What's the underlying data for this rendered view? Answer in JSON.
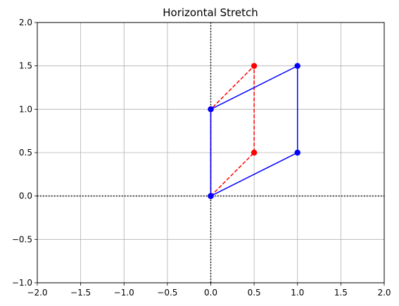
{
  "chart_data": {
    "type": "line",
    "title": "Horizontal Stretch",
    "xlabel": "",
    "ylabel": "",
    "xlim": [
      -2.0,
      2.0
    ],
    "ylim": [
      -1.0,
      2.0
    ],
    "grid": true,
    "x_ticks": [
      "−2.0",
      "−1.5",
      "−1.0",
      "−0.5",
      "0.0",
      "0.5",
      "1.0",
      "1.5",
      "2.0"
    ],
    "y_ticks": [
      "−1.0",
      "−0.5",
      "0.0",
      "0.5",
      "1.0",
      "1.5",
      "2.0"
    ],
    "series": [
      {
        "color": "#ff0000",
        "line_style": "dashed",
        "marker": "circle",
        "x": [
          0.0,
          0.5,
          0.5,
          0.0,
          0.0
        ],
        "y": [
          0.0,
          0.5,
          1.5,
          1.0,
          0.0
        ]
      },
      {
        "color": "#0000ff",
        "line_style": "solid",
        "marker": "circle",
        "x": [
          0.0,
          1.0,
          1.0,
          0.0,
          0.0
        ],
        "y": [
          0.0,
          0.5,
          1.5,
          1.0,
          0.0
        ]
      }
    ],
    "reference_lines": [
      {
        "orientation": "horizontal",
        "value": 0.0,
        "color": "#000000",
        "style": "dotted"
      },
      {
        "orientation": "vertical",
        "value": 0.0,
        "color": "#000000",
        "style": "dotted"
      }
    ]
  }
}
